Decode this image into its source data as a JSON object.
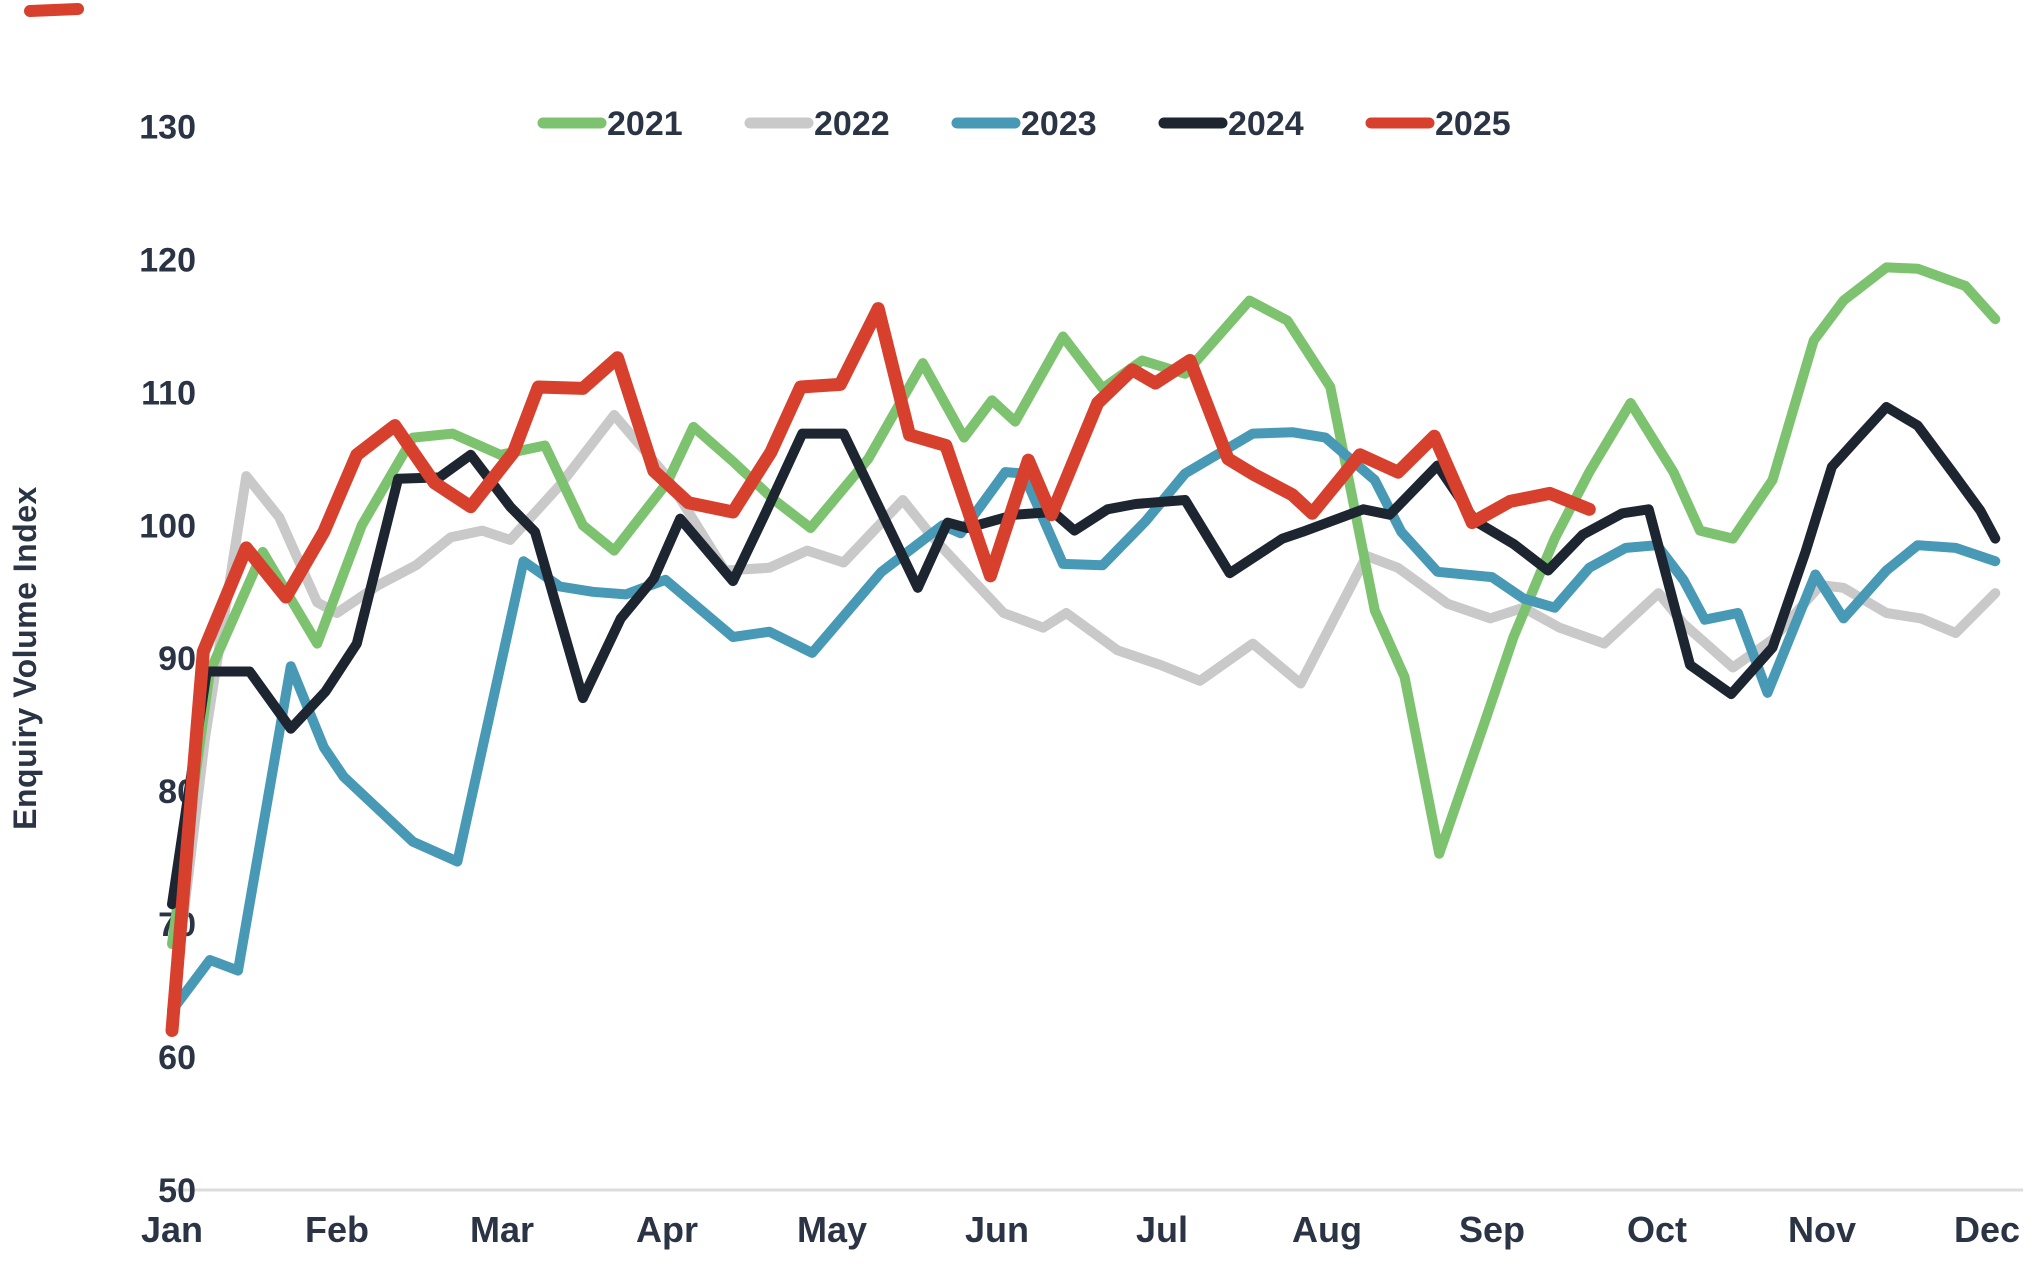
{
  "page": {
    "background": "#ffffff",
    "text_color": "#2a3444",
    "axis_line_color": "#dcdcdc"
  },
  "artifact": {
    "description": "cropped-red-line-fragment-top-left",
    "color": "#d8402e"
  },
  "chart_data": {
    "type": "line",
    "title": "",
    "xlabel": "",
    "ylabel": "Enquiry Volume Index",
    "x_tick_labels": [
      "Jan",
      "Feb",
      "Mar",
      "Apr",
      "May",
      "Jun",
      "Jul",
      "Aug",
      "Sep",
      "Oct",
      "Nov",
      "Dec"
    ],
    "y_ticks": [
      50,
      60,
      70,
      80,
      90,
      100,
      110,
      120,
      130
    ],
    "ylim": [
      50,
      133
    ],
    "xlim_months": [
      0,
      11.35
    ],
    "grid": false,
    "legend_position": "top",
    "series": [
      {
        "name": "2022",
        "color": "#c9c9c9",
        "width": 10,
        "points": [
          [
            0.0,
            63.5
          ],
          [
            0.2,
            84.0
          ],
          [
            0.45,
            103.7
          ],
          [
            0.65,
            100.6
          ],
          [
            0.88,
            94.2
          ],
          [
            1.0,
            93.4
          ],
          [
            1.25,
            95.5
          ],
          [
            1.48,
            97.0
          ],
          [
            1.69,
            99.1
          ],
          [
            1.88,
            99.6
          ],
          [
            2.05,
            98.9
          ],
          [
            2.35,
            103.0
          ],
          [
            2.68,
            108.3
          ],
          [
            2.99,
            103.8
          ],
          [
            3.35,
            96.6
          ],
          [
            3.62,
            96.8
          ],
          [
            3.85,
            98.1
          ],
          [
            4.07,
            97.2
          ],
          [
            4.43,
            101.9
          ],
          [
            4.61,
            99.1
          ],
          [
            5.04,
            93.4
          ],
          [
            5.28,
            92.3
          ],
          [
            5.42,
            93.4
          ],
          [
            5.73,
            90.6
          ],
          [
            5.99,
            89.5
          ],
          [
            6.23,
            88.3
          ],
          [
            6.55,
            91.1
          ],
          [
            6.84,
            88.1
          ],
          [
            7.24,
            97.7
          ],
          [
            7.43,
            96.8
          ],
          [
            7.73,
            94.1
          ],
          [
            7.99,
            93.0
          ],
          [
            8.19,
            93.8
          ],
          [
            8.41,
            92.3
          ],
          [
            8.68,
            91.1
          ],
          [
            9.01,
            94.9
          ],
          [
            9.16,
            92.6
          ],
          [
            9.46,
            89.3
          ],
          [
            9.7,
            91.4
          ],
          [
            9.99,
            95.5
          ],
          [
            10.13,
            95.3
          ],
          [
            10.39,
            93.4
          ],
          [
            10.6,
            93.0
          ],
          [
            10.81,
            91.9
          ],
          [
            11.05,
            94.9
          ]
        ]
      },
      {
        "name": "2021",
        "color": "#7dc36f",
        "width": 10,
        "points": [
          [
            0.0,
            68.5
          ],
          [
            0.23,
            89.0
          ],
          [
            0.55,
            98.0
          ],
          [
            0.88,
            91.1
          ],
          [
            1.15,
            100.0
          ],
          [
            1.46,
            106.6
          ],
          [
            1.7,
            106.9
          ],
          [
            1.99,
            105.3
          ],
          [
            2.26,
            106.0
          ],
          [
            2.49,
            100.0
          ],
          [
            2.68,
            98.1
          ],
          [
            3.0,
            103.2
          ],
          [
            3.16,
            107.4
          ],
          [
            3.4,
            104.8
          ],
          [
            3.64,
            102.0
          ],
          [
            3.87,
            99.8
          ],
          [
            4.22,
            105.0
          ],
          [
            4.55,
            112.2
          ],
          [
            4.8,
            106.6
          ],
          [
            4.97,
            109.4
          ],
          [
            5.11,
            107.8
          ],
          [
            5.4,
            114.2
          ],
          [
            5.64,
            110.3
          ],
          [
            5.88,
            112.4
          ],
          [
            6.14,
            111.4
          ],
          [
            6.53,
            116.9
          ],
          [
            6.76,
            115.4
          ],
          [
            7.02,
            110.4
          ],
          [
            7.29,
            93.6
          ],
          [
            7.47,
            88.6
          ],
          [
            7.68,
            75.3
          ],
          [
            7.95,
            85.0
          ],
          [
            8.13,
            91.6
          ],
          [
            8.38,
            99.0
          ],
          [
            8.59,
            104.0
          ],
          [
            8.84,
            109.2
          ],
          [
            9.1,
            104.0
          ],
          [
            9.26,
            99.6
          ],
          [
            9.46,
            99.0
          ],
          [
            9.7,
            103.4
          ],
          [
            9.95,
            113.9
          ],
          [
            10.13,
            116.9
          ],
          [
            10.39,
            119.4
          ],
          [
            10.58,
            119.3
          ],
          [
            10.87,
            118.0
          ],
          [
            11.05,
            115.5
          ]
        ]
      },
      {
        "name": "2023",
        "color": "#4799b5",
        "width": 10,
        "points": [
          [
            0.0,
            63.5
          ],
          [
            0.23,
            67.3
          ],
          [
            0.4,
            66.5
          ],
          [
            0.72,
            89.4
          ],
          [
            0.92,
            83.3
          ],
          [
            1.04,
            81.1
          ],
          [
            1.46,
            76.2
          ],
          [
            1.73,
            74.7
          ],
          [
            2.13,
            97.3
          ],
          [
            2.35,
            95.4
          ],
          [
            2.55,
            95.0
          ],
          [
            2.75,
            94.8
          ],
          [
            2.99,
            95.9
          ],
          [
            3.4,
            91.6
          ],
          [
            3.62,
            92.0
          ],
          [
            3.88,
            90.4
          ],
          [
            4.3,
            96.5
          ],
          [
            4.67,
            100.0
          ],
          [
            4.78,
            99.4
          ],
          [
            5.05,
            104.0
          ],
          [
            5.16,
            103.9
          ],
          [
            5.4,
            97.1
          ],
          [
            5.64,
            97.0
          ],
          [
            5.9,
            100.3
          ],
          [
            6.14,
            103.9
          ],
          [
            6.55,
            106.9
          ],
          [
            6.79,
            107.0
          ],
          [
            6.99,
            106.6
          ],
          [
            7.29,
            103.4
          ],
          [
            7.45,
            99.5
          ],
          [
            7.67,
            96.5
          ],
          [
            8.0,
            96.1
          ],
          [
            8.19,
            94.5
          ],
          [
            8.38,
            93.8
          ],
          [
            8.59,
            96.8
          ],
          [
            8.81,
            98.3
          ],
          [
            9.0,
            98.5
          ],
          [
            9.16,
            95.9
          ],
          [
            9.29,
            92.9
          ],
          [
            9.49,
            93.4
          ],
          [
            9.67,
            87.4
          ],
          [
            9.96,
            96.3
          ],
          [
            10.13,
            93.0
          ],
          [
            10.39,
            96.6
          ],
          [
            10.58,
            98.5
          ],
          [
            10.81,
            98.3
          ],
          [
            11.05,
            97.3
          ]
        ]
      },
      {
        "name": "2024",
        "color": "#1d2530",
        "width": 10,
        "points": [
          [
            0.0,
            71.5
          ],
          [
            0.21,
            89.0
          ],
          [
            0.47,
            89.0
          ],
          [
            0.72,
            84.7
          ],
          [
            0.93,
            87.5
          ],
          [
            1.12,
            91.1
          ],
          [
            1.37,
            103.5
          ],
          [
            1.62,
            103.6
          ],
          [
            1.81,
            105.3
          ],
          [
            2.05,
            101.4
          ],
          [
            2.2,
            99.5
          ],
          [
            2.49,
            87.0
          ],
          [
            2.72,
            93.0
          ],
          [
            2.92,
            96.0
          ],
          [
            3.08,
            100.5
          ],
          [
            3.4,
            95.8
          ],
          [
            3.6,
            101.0
          ],
          [
            3.82,
            106.9
          ],
          [
            4.07,
            106.9
          ],
          [
            4.52,
            95.3
          ],
          [
            4.7,
            100.2
          ],
          [
            4.82,
            99.8
          ],
          [
            5.11,
            100.8
          ],
          [
            5.34,
            101.0
          ],
          [
            5.47,
            99.6
          ],
          [
            5.67,
            101.2
          ],
          [
            5.84,
            101.6
          ],
          [
            6.14,
            101.9
          ],
          [
            6.41,
            96.4
          ],
          [
            6.73,
            99.0
          ],
          [
            6.85,
            99.5
          ],
          [
            7.22,
            101.2
          ],
          [
            7.38,
            100.8
          ],
          [
            7.67,
            104.5
          ],
          [
            7.9,
            100.3
          ],
          [
            8.13,
            98.6
          ],
          [
            8.34,
            96.6
          ],
          [
            8.55,
            99.3
          ],
          [
            8.79,
            100.9
          ],
          [
            8.95,
            101.2
          ],
          [
            9.2,
            89.5
          ],
          [
            9.45,
            87.3
          ],
          [
            9.7,
            90.8
          ],
          [
            9.9,
            98.0
          ],
          [
            10.06,
            104.4
          ],
          [
            10.22,
            106.6
          ],
          [
            10.39,
            108.9
          ],
          [
            10.58,
            107.5
          ],
          [
            10.79,
            104.0
          ],
          [
            10.96,
            101.1
          ],
          [
            11.05,
            99.0
          ]
        ]
      },
      {
        "name": "2025",
        "color": "#d8402e",
        "width": 13,
        "points": [
          [
            0.0,
            62.0
          ],
          [
            0.19,
            90.5
          ],
          [
            0.45,
            98.3
          ],
          [
            0.69,
            94.6
          ],
          [
            0.92,
            99.5
          ],
          [
            1.12,
            105.3
          ],
          [
            1.35,
            107.5
          ],
          [
            1.59,
            103.2
          ],
          [
            1.81,
            101.4
          ],
          [
            2.07,
            105.5
          ],
          [
            2.22,
            110.4
          ],
          [
            2.49,
            110.3
          ],
          [
            2.7,
            112.6
          ],
          [
            2.92,
            104.1
          ],
          [
            3.13,
            101.7
          ],
          [
            3.4,
            101.0
          ],
          [
            3.63,
            105.5
          ],
          [
            3.81,
            110.4
          ],
          [
            4.05,
            110.6
          ],
          [
            4.28,
            116.3
          ],
          [
            4.47,
            106.8
          ],
          [
            4.69,
            106.0
          ],
          [
            4.96,
            96.2
          ],
          [
            5.19,
            104.9
          ],
          [
            5.33,
            100.8
          ],
          [
            5.61,
            109.2
          ],
          [
            5.82,
            111.7
          ],
          [
            5.96,
            110.7
          ],
          [
            6.17,
            112.4
          ],
          [
            6.4,
            105.0
          ],
          [
            6.56,
            103.8
          ],
          [
            6.79,
            102.3
          ],
          [
            6.91,
            100.9
          ],
          [
            7.2,
            105.3
          ],
          [
            7.43,
            104.0
          ],
          [
            7.65,
            106.7
          ],
          [
            7.88,
            100.2
          ],
          [
            8.11,
            101.8
          ],
          [
            8.35,
            102.4
          ],
          [
            8.59,
            101.2
          ]
        ]
      }
    ],
    "legend_order": [
      "2021",
      "2022",
      "2023",
      "2024",
      "2025"
    ]
  }
}
